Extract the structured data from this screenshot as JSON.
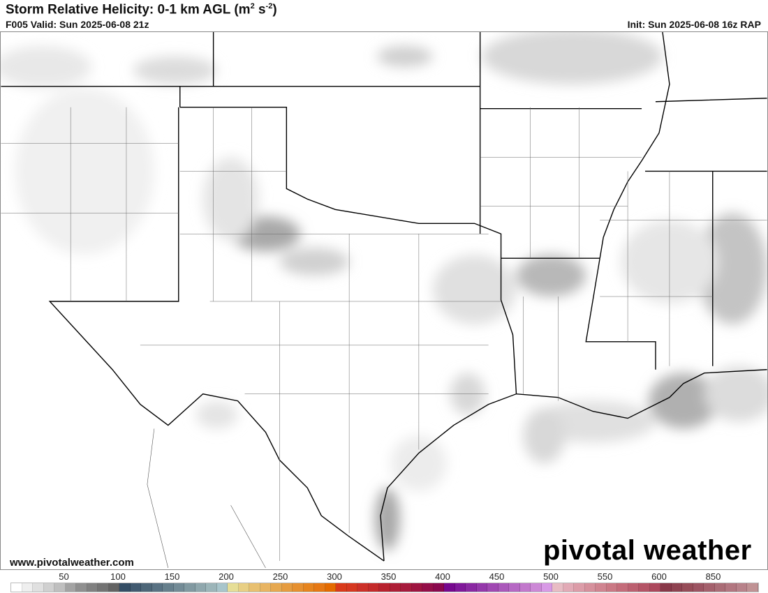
{
  "header": {
    "title": "Storm Relative Helicity: 0-1 km AGL (m",
    "title_sup1": "2",
    "title_mid": " s",
    "title_sup2": "-2",
    "title_end": ")",
    "valid": "F005 Valid: Sun 2025-06-08 21z",
    "init": "Init: Sun 2025-06-08 16z RAP"
  },
  "footer": {
    "url": "www.pivotalweather.com",
    "logo": "pivotal weather"
  },
  "colorbar": {
    "labels": [
      "50",
      "100",
      "150",
      "200",
      "250",
      "300",
      "350",
      "400",
      "450",
      "500",
      "550",
      "600",
      "850"
    ],
    "colors": [
      "#ffffff",
      "#efefef",
      "#e0e0e0",
      "#d0d0d0",
      "#bfbfbf",
      "#a3a3a3",
      "#8f8f8f",
      "#808080",
      "#737373",
      "#636363",
      "#344e66",
      "#415a70",
      "#4d6678",
      "#597283",
      "#667f8c",
      "#738b96",
      "#8199a1",
      "#8fa7ad",
      "#9cb5b9",
      "#a8c5cb",
      "#e6de96",
      "#e8cf84",
      "#e8c070",
      "#e8b462",
      "#e6a850",
      "#e69c40",
      "#e69030",
      "#e6841e",
      "#e67814",
      "#e46a00",
      "#d93a1a",
      "#d63820",
      "#cc3028",
      "#c42a2a",
      "#b8222e",
      "#ae1e36",
      "#a61a3c",
      "#9e1440",
      "#940e48",
      "#8a084e",
      "#76088e",
      "#80189a",
      "#8a28a2",
      "#9438aa",
      "#a048b2",
      "#aa58ba",
      "#b668c4",
      "#c278cc",
      "#cc88d6",
      "#d89ae6",
      "#e8bcc4",
      "#e2aab6",
      "#dc9ca8",
      "#d6909c",
      "#d08490",
      "#ca7884",
      "#c46c7a",
      "#bc6070",
      "#b45466",
      "#ac485c",
      "#883848",
      "#8e4250",
      "#964c58",
      "#9c5462",
      "#a4606c",
      "#aa6c76",
      "#b27680",
      "#b8828a",
      "#c09294"
    ]
  }
}
